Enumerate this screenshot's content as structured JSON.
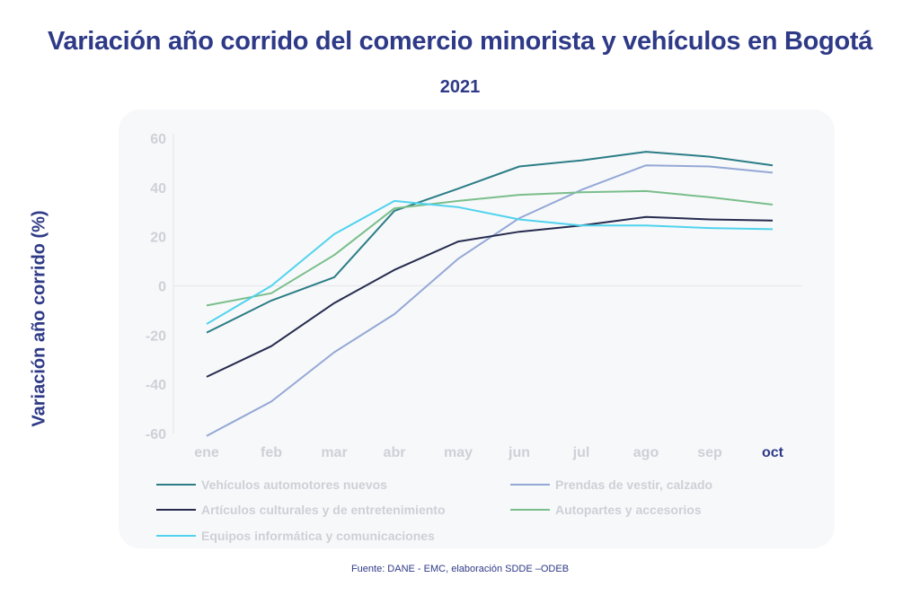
{
  "chart_data": {
    "type": "line",
    "title": "Variación año corrido del comercio minorista y vehículos en Bogotá",
    "subtitle": "2021",
    "xlabel": "",
    "ylabel": "Variación año corrido (%)",
    "ylim": [
      -60,
      60
    ],
    "yticks": [
      60,
      40,
      20,
      0,
      -20,
      -40,
      -60
    ],
    "ytick_labels": [
      "60",
      "40",
      "20",
      "0",
      "-20",
      "-40",
      "-60"
    ],
    "categories": [
      "ene",
      "feb",
      "mar",
      "abr",
      "may",
      "jun",
      "jul",
      "ago",
      "sep",
      "oct"
    ],
    "highlight_category": "oct",
    "grid": false,
    "legend_position": "bottom",
    "series": [
      {
        "name": "Vehículos automotores nuevos",
        "color": "#2b7d86",
        "values": [
          -19,
          -6,
          3.5,
          30.5,
          39.5,
          48.5,
          51,
          54.5,
          52.5,
          49
        ]
      },
      {
        "name": "Prendas de vestir, calzado",
        "color": "#94a8d6",
        "values": [
          -61,
          -47,
          -27,
          -11.5,
          11,
          27.5,
          39,
          49,
          48.5,
          46
        ]
      },
      {
        "name": "Artículos culturales y de entretenimiento",
        "color": "#262b4e",
        "values": [
          -37,
          -24.5,
          -7,
          6.5,
          18,
          22,
          24.5,
          28,
          27,
          26.5
        ]
      },
      {
        "name": "Autopartes y accesorios",
        "color": "#79be8b",
        "values": [
          -8,
          -3,
          12.5,
          31.5,
          34.5,
          37,
          38,
          38.5,
          36,
          33
        ]
      },
      {
        "name": "Equipos informática y comunicaciones",
        "color": "#4fd3ee",
        "values": [
          -15.5,
          0,
          21,
          34.5,
          32,
          27,
          24.5,
          24.5,
          23.5,
          23
        ]
      }
    ],
    "source": "Fuente: DANE - EMC, elaboración SDDE –ODEB"
  }
}
